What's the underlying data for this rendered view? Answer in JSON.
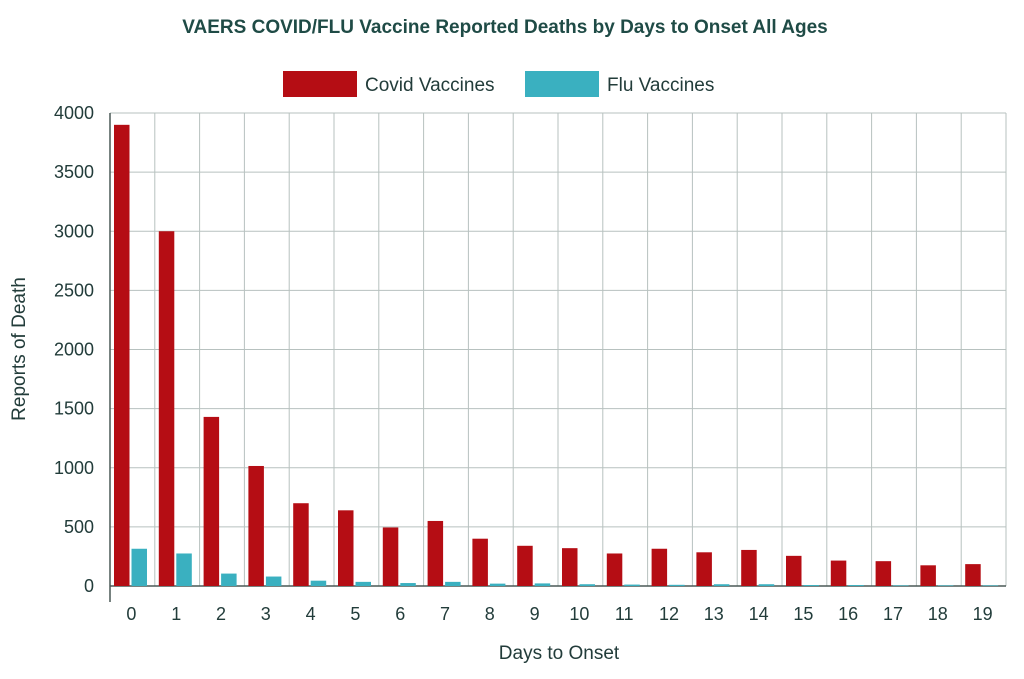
{
  "chart_data": {
    "type": "bar",
    "title": "VAERS COVID/FLU Vaccine Reported Deaths by Days to Onset All Ages",
    "xlabel": "Days to Onset",
    "ylabel": "Reports of Death",
    "categories": [
      "0",
      "1",
      "2",
      "3",
      "4",
      "5",
      "6",
      "7",
      "8",
      "9",
      "10",
      "11",
      "12",
      "13",
      "14",
      "15",
      "16",
      "17",
      "18",
      "19"
    ],
    "series": [
      {
        "name": "Covid Vaccines",
        "color": "#b50d14",
        "values": [
          3900,
          3000,
          1430,
          1015,
          700,
          640,
          495,
          550,
          400,
          340,
          320,
          275,
          315,
          285,
          305,
          255,
          215,
          210,
          175,
          185
        ]
      },
      {
        "name": "Flu Vaccines",
        "color": "#3ab0c0",
        "values": [
          315,
          275,
          105,
          80,
          45,
          35,
          25,
          35,
          20,
          22,
          15,
          12,
          10,
          15,
          15,
          8,
          8,
          5,
          5,
          5
        ]
      }
    ],
    "ylim": [
      0,
      4000
    ],
    "yticks": [
      0,
      500,
      1000,
      1500,
      2000,
      2500,
      3000,
      3500,
      4000
    ],
    "grid": true,
    "legend_position": "top-center"
  }
}
